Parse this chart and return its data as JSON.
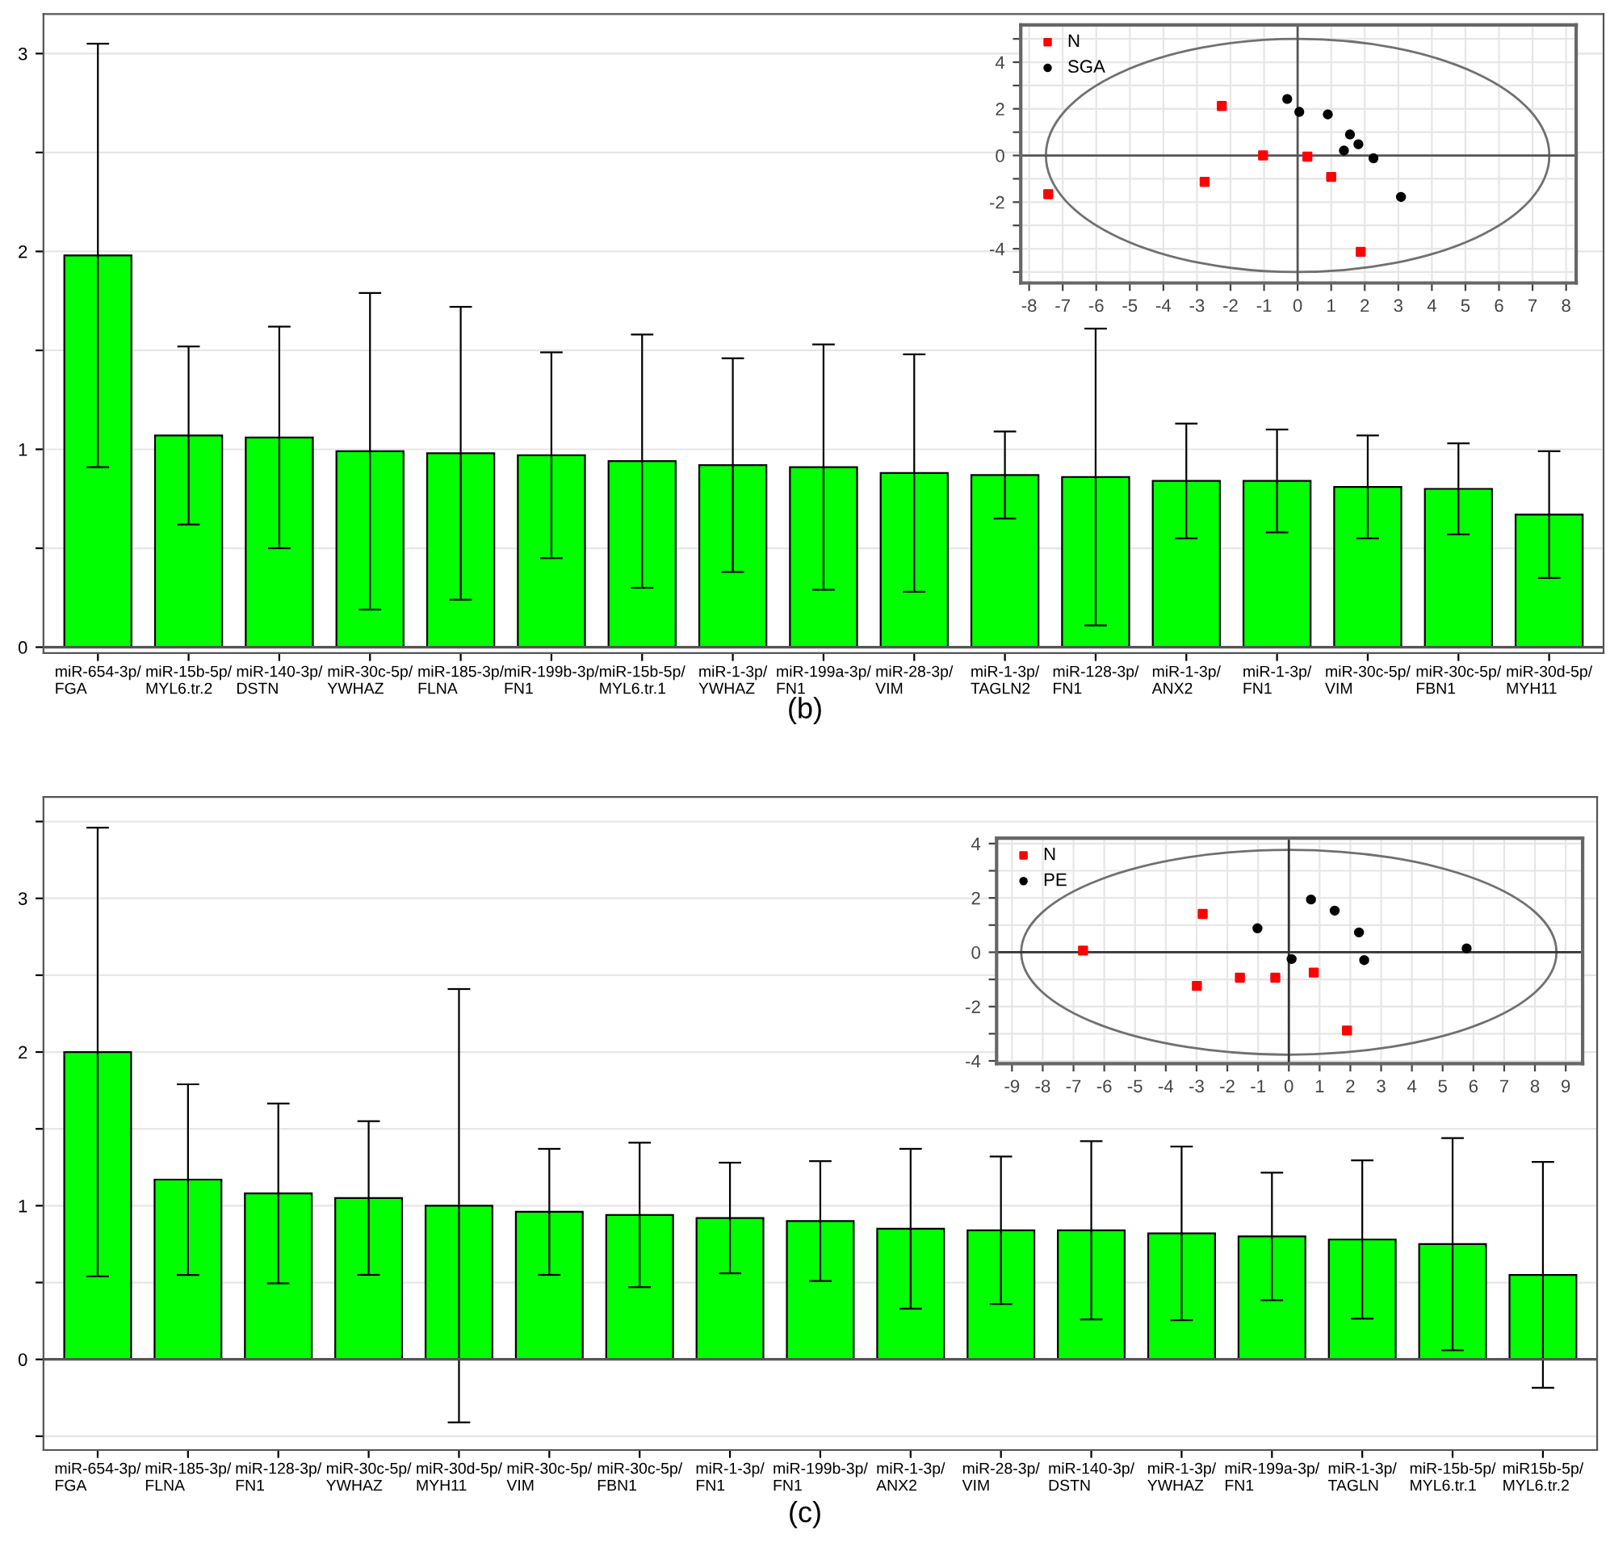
{
  "chart_data": [
    {
      "type": "bar",
      "categories": [
        "miR-654-3p/\nFGA",
        "miR-15b-5p/\nMYL6.tr.2",
        "miR-140-3p/\nDSTN",
        "miR-30c-5p/\nYWHAZ",
        "miR-185-3p/\nFLNA",
        "miR-199b-3p/\nFN1",
        "miR-15b-5p/\nMYL6.tr.1",
        "miR-1-3p/\nYWHAZ",
        "miR-199a-3p/\nFN1",
        "miR-28-3p/\nVIM",
        "miR-1-3p/\nTAGLN2",
        "miR-128-3p/\nFN1",
        "miR-1-3p/\nANX2",
        "miR-1-3p/\nFN1",
        "miR-30c-5p/\nVIM",
        "miR-30c-5p/\nFBN1",
        "miR-30d-5p/\nMYH11"
      ],
      "values": [
        1.98,
        1.07,
        1.06,
        0.99,
        0.98,
        0.97,
        0.94,
        0.92,
        0.91,
        0.88,
        0.87,
        0.86,
        0.84,
        0.84,
        0.81,
        0.8,
        0.67
      ],
      "errors": [
        1.07,
        0.45,
        0.56,
        0.8,
        0.74,
        0.52,
        0.64,
        0.54,
        0.62,
        0.6,
        0.22,
        0.75,
        0.29,
        0.26,
        0.26,
        0.23,
        0.32
      ],
      "color": "#00ff00",
      "ylim": [
        -0.03,
        3.2
      ],
      "yticks": [
        0,
        {
          "value": 0.5,
          "label": null
        },
        1,
        {
          "value": 1.5,
          "label": null
        },
        2,
        {
          "value": 2.5,
          "label": null
        },
        3
      ],
      "grid": "y",
      "annotations": [
        "(b)"
      ]
    },
    {
      "type": "scatter",
      "xlim": [
        -8.25,
        8.3
      ],
      "ylim": [
        -5.47,
        5.6
      ],
      "xticks": [
        -8,
        -7,
        -6,
        -5,
        -4,
        -3,
        -2,
        -1,
        0,
        1,
        2,
        3,
        4,
        5,
        6,
        7,
        8
      ],
      "yticks": [
        {
          "value": -5,
          "label": null
        },
        -4,
        {
          "value": -3,
          "label": null
        },
        -2,
        {
          "value": -1,
          "label": null
        },
        0,
        {
          "value": 1,
          "label": null
        },
        2,
        {
          "value": 3,
          "label": null
        },
        4,
        {
          "value": 5,
          "label": null
        }
      ],
      "grid": true,
      "legend": "top left",
      "series": [
        {
          "name": "N",
          "type": "scatter",
          "marker": "square",
          "color": "#ff0000",
          "x": [
            -7.43,
            -2.26,
            -1.03,
            -2.77,
            0.29,
            1.0,
            1.88
          ],
          "values": [
            -1.66,
            2.12,
            0.0,
            -1.13,
            -0.05,
            -0.92,
            -4.13
          ]
        },
        {
          "name": "SGA",
          "type": "scatter",
          "marker": "circle",
          "color": "#000000",
          "x": [
            -0.31,
            0.05,
            0.9,
            1.56,
            1.38,
            1.81,
            2.26,
            3.08
          ],
          "values": [
            2.42,
            1.87,
            1.76,
            0.9,
            0.21,
            0.48,
            -0.12,
            -1.78
          ]
        },
        {
          "type": "line",
          "color": "#555555",
          "x": [
            -8.25,
            8.3
          ],
          "values": [
            0,
            0
          ]
        },
        {
          "type": "line",
          "color": "#555555",
          "x": [
            0,
            0
          ],
          "values": [
            -5.47,
            5.6
          ]
        }
      ]
    },
    {
      "type": "bar",
      "categories": [
        "miR-654-3p/\nFGA",
        "miR-185-3p/\nFLNA",
        "miR-128-3p/\nFN1",
        "miR-30c-5p/\nYWHAZ",
        "miR-30d-5p/\nMYH11",
        "miR-30c-5p/\nVIM",
        "miR-30c-5p/\nFBN1",
        "miR-1-3p/\nFN1",
        "miR-199b-3p/\nFN1",
        "miR-1-3p/\nANX2",
        "miR-28-3p/\nVIM",
        "miR-140-3p/\nDSTN",
        "miR-1-3p/\nYWHAZ",
        "miR-199a-3p/\nFN1",
        "miR-1-3p/\nTAGLN",
        "miR-15b-5p/\nMYL6.tr.1",
        "miR15b-5p/\nMYL6.tr.2"
      ],
      "values": [
        2.0,
        1.17,
        1.08,
        1.05,
        1.0,
        0.96,
        0.94,
        0.92,
        0.9,
        0.85,
        0.84,
        0.84,
        0.82,
        0.8,
        0.78,
        0.75,
        0.55
      ],
      "errors": [
        1.46,
        0.62,
        0.585,
        0.5,
        1.41,
        0.41,
        0.47,
        0.36,
        0.39,
        0.52,
        0.48,
        0.58,
        0.565,
        0.415,
        0.515,
        0.69,
        0.735
      ],
      "color": "#00ff00",
      "ylim": [
        -0.59,
        3.66
      ],
      "yticks": [
        {
          "value": -0.5,
          "label": null
        },
        0,
        {
          "value": 0.5,
          "label": null
        },
        1,
        {
          "value": 1.5,
          "label": null
        },
        2,
        {
          "value": 2.5,
          "label": null
        },
        3,
        {
          "value": 3.5,
          "label": null
        }
      ],
      "grid": "y",
      "annotations": [
        "(c)"
      ]
    },
    {
      "type": "scatter",
      "xlim": [
        -9.5,
        9.55
      ],
      "ylim": [
        -4.1,
        4.2
      ],
      "xticks": [
        -9,
        -8,
        -7,
        -6,
        -5,
        -4,
        -3,
        -2,
        -1,
        0,
        1,
        2,
        3,
        4,
        5,
        6,
        7,
        8,
        9
      ],
      "yticks": [
        -4,
        {
          "value": -3,
          "label": null
        },
        -2,
        {
          "value": -1,
          "label": null
        },
        0,
        {
          "value": 1,
          "label": null
        },
        2,
        {
          "value": 3,
          "label": null
        },
        4
      ],
      "grid": true,
      "legend": "top left",
      "series": [
        {
          "name": "N",
          "type": "scatter",
          "marker": "square",
          "color": "#ff0000",
          "x": [
            -6.69,
            -2.8,
            -2.99,
            -1.59,
            -0.44,
            0.81,
            1.89
          ],
          "values": [
            0.06,
            1.41,
            -1.24,
            -0.94,
            -0.94,
            -0.75,
            -2.88
          ]
        },
        {
          "name": "PE",
          "type": "scatter",
          "marker": "circle",
          "color": "#000000",
          "x": [
            -1.02,
            0.09,
            0.72,
            1.49,
            2.28,
            2.45,
            5.78
          ],
          "values": [
            0.88,
            -0.25,
            1.94,
            1.53,
            0.73,
            -0.29,
            0.14
          ]
        },
        {
          "type": "line",
          "color": "#333333",
          "x": [
            -9.5,
            9.55
          ],
          "values": [
            0,
            0
          ]
        },
        {
          "type": "line",
          "color": "#333333",
          "x": [
            0,
            0
          ],
          "values": [
            -4.1,
            4.2
          ]
        }
      ]
    }
  ]
}
